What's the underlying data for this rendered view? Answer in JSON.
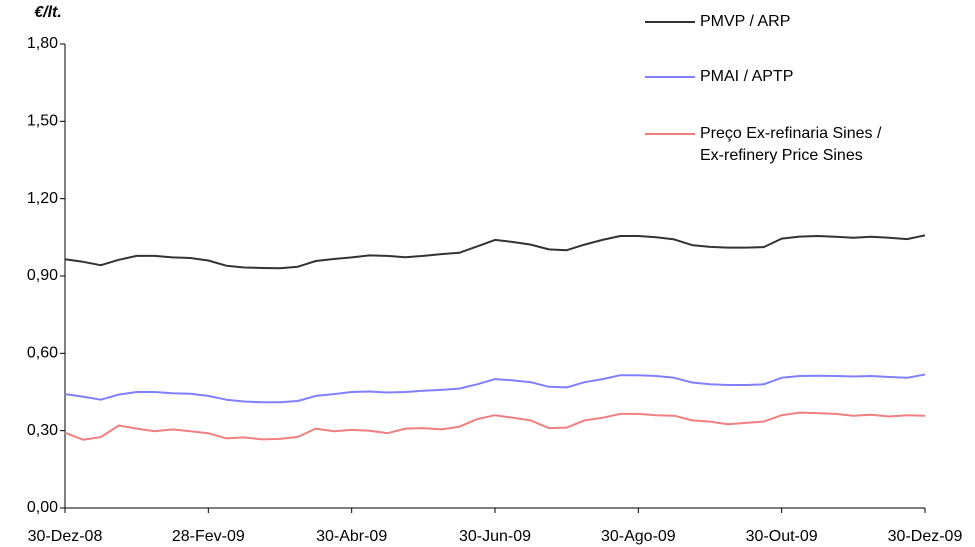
{
  "chart_data": {
    "type": "line",
    "y_axis_label": "€/lt.",
    "categories": [
      "30-Dez-08",
      null,
      null,
      null,
      null,
      null,
      null,
      null,
      "28-Fev-09",
      null,
      null,
      null,
      null,
      null,
      null,
      null,
      "30-Abr-09",
      null,
      null,
      null,
      null,
      null,
      null,
      null,
      "30-Jun-09",
      null,
      null,
      null,
      null,
      null,
      null,
      null,
      "30-Ago-09",
      null,
      null,
      null,
      null,
      null,
      null,
      null,
      "30-Out-09",
      null,
      null,
      null,
      null,
      null,
      null,
      null,
      "30-Dez-09"
    ],
    "series": [
      {
        "name": "PMVP / ARP",
        "color": "#333333",
        "values": [
          0.965,
          0.955,
          0.942,
          0.963,
          0.978,
          0.978,
          0.972,
          0.97,
          0.96,
          0.94,
          0.933,
          0.931,
          0.93,
          0.936,
          0.958,
          0.966,
          0.972,
          0.98,
          0.978,
          0.973,
          0.978,
          0.985,
          0.99,
          1.015,
          1.04,
          1.032,
          1.022,
          1.003,
          1.0,
          1.022,
          1.04,
          1.055,
          1.055,
          1.05,
          1.042,
          1.02,
          1.013,
          1.01,
          1.01,
          1.012,
          1.045,
          1.053,
          1.055,
          1.052,
          1.048,
          1.052,
          1.048,
          1.043,
          1.058
        ]
      },
      {
        "name": "PMAI / APTP",
        "color": "#8080ff",
        "values": [
          0.442,
          0.432,
          0.42,
          0.44,
          0.45,
          0.45,
          0.445,
          0.443,
          0.435,
          0.42,
          0.413,
          0.41,
          0.41,
          0.415,
          0.435,
          0.442,
          0.45,
          0.452,
          0.448,
          0.45,
          0.455,
          0.458,
          0.463,
          0.48,
          0.5,
          0.495,
          0.488,
          0.47,
          0.468,
          0.488,
          0.5,
          0.515,
          0.515,
          0.512,
          0.505,
          0.487,
          0.48,
          0.477,
          0.477,
          0.48,
          0.505,
          0.512,
          0.513,
          0.512,
          0.51,
          0.512,
          0.508,
          0.505,
          0.518
        ]
      },
      {
        "name": "Preço Ex-refinaria Sines /\nEx-refinery Price Sines",
        "color": "#f08080",
        "values": [
          0.292,
          0.265,
          0.275,
          0.32,
          0.308,
          0.298,
          0.305,
          0.298,
          0.29,
          0.27,
          0.274,
          0.266,
          0.268,
          0.276,
          0.308,
          0.298,
          0.303,
          0.3,
          0.29,
          0.308,
          0.31,
          0.305,
          0.315,
          0.345,
          0.36,
          0.35,
          0.34,
          0.31,
          0.312,
          0.34,
          0.35,
          0.365,
          0.365,
          0.36,
          0.358,
          0.34,
          0.335,
          0.325,
          0.33,
          0.335,
          0.36,
          0.37,
          0.368,
          0.365,
          0.358,
          0.362,
          0.355,
          0.36,
          0.358
        ]
      }
    ],
    "ylim": [
      0,
      1.8
    ],
    "yticks": [
      {
        "value": 0,
        "label": "0,00"
      },
      {
        "value": 0.3,
        "label": "0,30"
      },
      {
        "value": 0.6,
        "label": "0,60"
      },
      {
        "value": 0.9,
        "label": "0,90"
      },
      {
        "value": 1.2,
        "label": "1,20"
      },
      {
        "value": 1.5,
        "label": "1,50"
      },
      {
        "value": 1.8,
        "label": "1,80"
      }
    ],
    "grid": false,
    "legend": "top-right"
  }
}
